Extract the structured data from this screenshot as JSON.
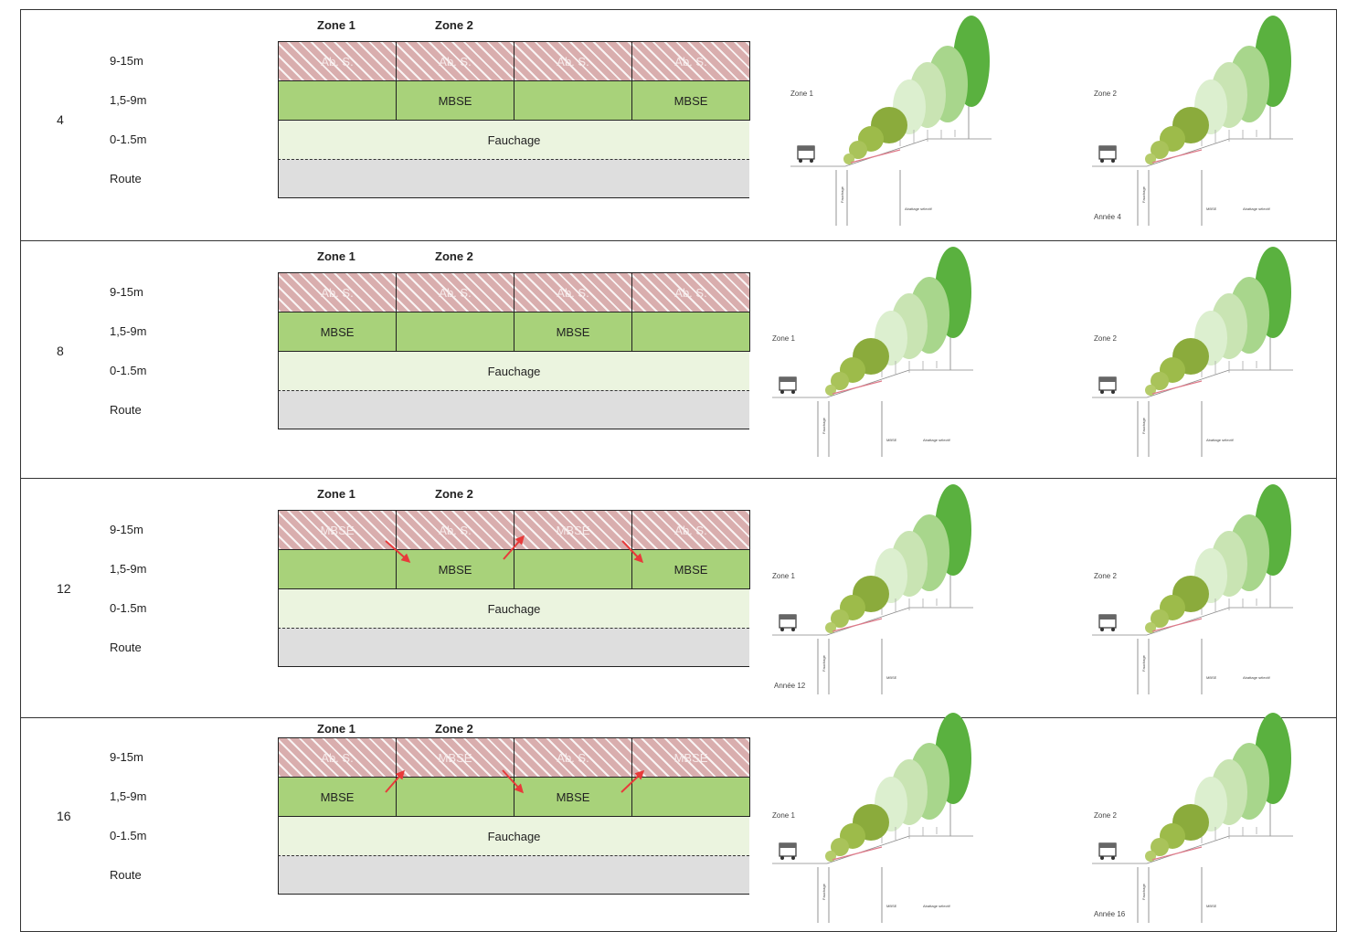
{
  "zone_labels": {
    "zone1": "Zone 1",
    "zone2": "Zone 2"
  },
  "band_labels": {
    "b1": "9-15m",
    "b2": "1,5-9m",
    "b3": "0-1.5m",
    "b4": "Route"
  },
  "fauchage": "Fauchage",
  "rows": [
    {
      "year": "4",
      "top": [
        "Ab. S.",
        "Ab. S.",
        "Ab. S.",
        "Ab. S."
      ],
      "mid": [
        "",
        "MBSE",
        "",
        "MBSE"
      ],
      "profile": {
        "zone1": {
          "title": "Zone 1",
          "year_label": "",
          "labels": [
            "Fauchage",
            "Abattage sélectif"
          ]
        },
        "zone2": {
          "title": "Zone 2",
          "year_label": "Année 4",
          "labels": [
            "Fauchage",
            "MBSE",
            "Abattage sélectif"
          ]
        }
      }
    },
    {
      "year": "8",
      "top": [
        "Ab. S.",
        "Ab. S.",
        "Ab. S.",
        "Ab. S."
      ],
      "mid": [
        "MBSE",
        "",
        "MBSE",
        ""
      ],
      "profile": {
        "zone1": {
          "title": "Zone 1",
          "year_label": "",
          "labels": [
            "Fauchage",
            "MBSE",
            "Abattage sélectif"
          ]
        },
        "zone2": {
          "title": "Zone 2",
          "year_label": "",
          "labels": [
            "Fauchage",
            "Abattage sélectif"
          ]
        }
      }
    },
    {
      "year": "12",
      "top": [
        "MBSE",
        "Ab. S.",
        "MBSE",
        "Ab. S."
      ],
      "mid": [
        "",
        "MBSE",
        "",
        "MBSE"
      ],
      "profile": {
        "zone1": {
          "title": "Zone 1",
          "year_label": "Année 12",
          "labels": [
            "Fauchage",
            "MBSE"
          ]
        },
        "zone2": {
          "title": "Zone 2",
          "year_label": "",
          "labels": [
            "Fauchage",
            "MBSE",
            "Abattage sélectif"
          ]
        }
      }
    },
    {
      "year": "16",
      "top": [
        "Ab. S.",
        "MBSE",
        "Ab. S.",
        "MBSE"
      ],
      "mid": [
        "MBSE",
        "",
        "MBSE",
        ""
      ],
      "profile": {
        "zone1": {
          "title": "Zone 1",
          "year_label": "",
          "labels": [
            "Fauchage",
            "MBSE",
            "Abattage sélectif"
          ]
        },
        "zone2": {
          "title": "Zone 2",
          "year_label": "Année 16",
          "labels": [
            "Fauchage",
            "MBSE"
          ]
        }
      }
    }
  ],
  "colors": {
    "hatch": "#d9aeae",
    "mbse_green": "#a8d27a",
    "fauchage": "#ebf4df",
    "route": "#dedede",
    "arrow": "#e83a3a",
    "tree_dark": "#5ab13f",
    "tree_light": "#c9e4b3",
    "shrub": "#8bab3c"
  }
}
